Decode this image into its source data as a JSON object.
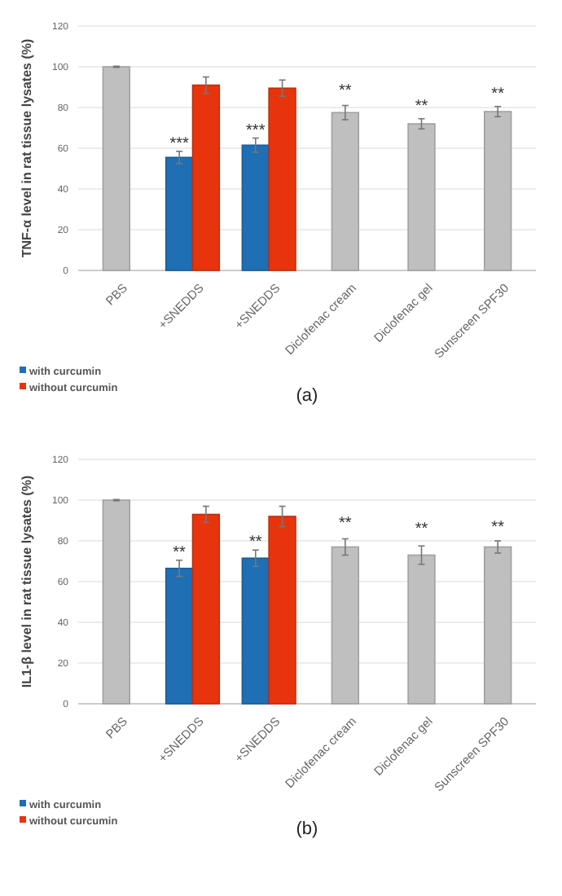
{
  "chart_data": [
    {
      "type": "bar",
      "ylabel": "TNF-α level in rat tissue lysates (%)",
      "categories": [
        "PBS",
        "+SNEDDS",
        "+SNEDDS",
        "Diclofenac cream",
        "Diclofenac gel",
        "Sunscreen SPF30"
      ],
      "series": [
        {
          "color": "#bfbfbf",
          "values": [
            100,
            null,
            null,
            77.5,
            72,
            78
          ],
          "errors": [
            0.3,
            null,
            null,
            3.5,
            2.5,
            2.5
          ]
        },
        {
          "name": "with curcumin",
          "color": "#1f6fb4",
          "values": [
            null,
            55.5,
            61.5,
            null,
            null,
            null
          ],
          "errors": [
            null,
            3,
            3.5,
            null,
            null,
            null
          ]
        },
        {
          "name": "without curcumin",
          "color": "#e8340c",
          "values": [
            null,
            91,
            89.5,
            null,
            null,
            null
          ],
          "errors": [
            null,
            4,
            4,
            null,
            null,
            null
          ]
        }
      ],
      "ylim": [
        0,
        120
      ],
      "yticks": [
        0,
        20,
        40,
        60,
        80,
        100,
        120
      ],
      "grid": "y",
      "legend": "bottom left",
      "annotations": [
        "***",
        "***",
        {
          "text": "**",
          "x": "Diclofenac cream",
          "y": 81
        },
        {
          "text": "**",
          "x": "Diclofenac gel",
          "y": 74.5
        },
        {
          "text": "**",
          "x": "Sunscreen SPF30",
          "y": 80.5
        },
        "(a)"
      ]
    },
    {
      "type": "bar",
      "ylabel": "IL1-β level in rat tissue lysates (%)",
      "categories": [
        "PBS",
        "+SNEDDS",
        "+SNEDDS",
        "Diclofenac cream",
        "Diclofenac gel",
        "Sunscreen SPF30"
      ],
      "series": [
        {
          "color": "#bfbfbf",
          "values": [
            100,
            null,
            null,
            77,
            73,
            77
          ],
          "errors": [
            0.3,
            null,
            null,
            4,
            4.5,
            3
          ]
        },
        {
          "name": "with curcumin",
          "color": "#1f6fb4",
          "values": [
            null,
            66.5,
            71.5,
            null,
            null,
            null
          ],
          "errors": [
            null,
            4,
            4,
            null,
            null,
            null
          ]
        },
        {
          "name": "without curcumin",
          "color": "#e8340c",
          "values": [
            null,
            93,
            92,
            null,
            null,
            null
          ],
          "errors": [
            null,
            4,
            5,
            null,
            null,
            null
          ]
        }
      ],
      "ylim": [
        0,
        120
      ],
      "yticks": [
        0,
        20,
        40,
        60,
        80,
        100,
        120
      ],
      "grid": "y",
      "legend": "bottom left",
      "annotations": [
        "**",
        "**",
        {
          "text": "**",
          "x": "Diclofenac cream",
          "y": 81
        },
        {
          "text": "**",
          "x": "Diclofenac gel",
          "y": 77.5
        },
        {
          "text": "**",
          "x": "Sunscreen SPF30",
          "y": 80
        },
        "(b)"
      ]
    }
  ]
}
